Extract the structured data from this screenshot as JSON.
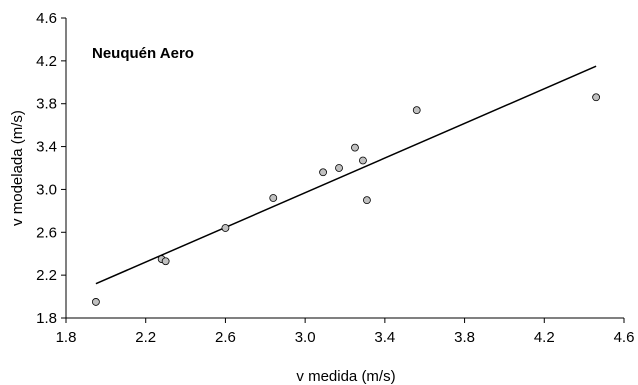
{
  "chart_data": {
    "type": "scatter",
    "title": "",
    "annotation": "Neuquén Aero",
    "xlabel": "v medida (m/s)",
    "ylabel": "v modelada (m/s)",
    "xlim": [
      1.8,
      4.6
    ],
    "ylim": [
      1.8,
      4.6
    ],
    "xticks": [
      "1.8",
      "2.2",
      "2.6",
      "3.0",
      "3.4",
      "3.8",
      "4.2",
      "4.6"
    ],
    "yticks": [
      "1.8",
      "2.2",
      "2.6",
      "3.0",
      "3.4",
      "3.8",
      "4.2",
      "4.6"
    ],
    "grid": false,
    "legend": "none",
    "marker_color": "#c0c0c0",
    "series": [
      {
        "x": [
          1.95,
          2.28,
          2.3,
          2.6,
          2.84,
          3.09,
          3.17,
          3.25,
          3.29,
          3.31,
          3.56,
          4.46
        ],
        "y": [
          1.95,
          2.35,
          2.33,
          2.64,
          2.92,
          3.16,
          3.2,
          3.39,
          3.27,
          2.9,
          3.74,
          3.86
        ]
      }
    ],
    "trendline": {
      "x": [
        1.95,
        4.46
      ],
      "y": [
        2.12,
        4.15
      ]
    }
  }
}
